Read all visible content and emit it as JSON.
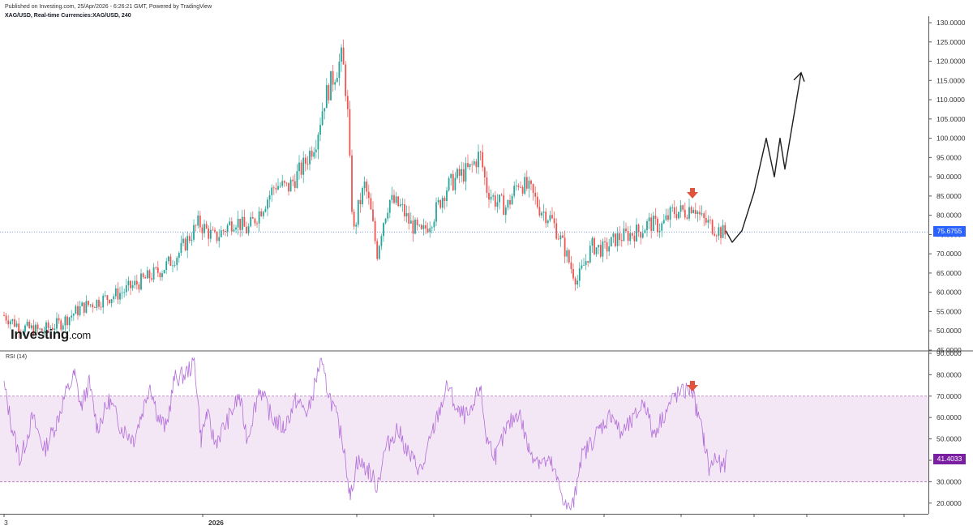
{
  "header": {
    "published": "Published on Investing.com, 25/Apr/2026 - 6:26:21 GMT, Powered by TradingView",
    "symbol": "XAG/USD, Real-time Currencies:XAG/USD, 240"
  },
  "logo": {
    "brand": "Investing",
    "suffix": ".com"
  },
  "rsi_panel": {
    "label": "RSI (14)"
  },
  "colors": {
    "up": "#26a69a",
    "down": "#ef5350",
    "rsi_line": "#b36ed9",
    "rsi_band": "#f3e6f5",
    "price_line": "#2962ff",
    "arrow": "#e0533d"
  },
  "chart_data": [
    {
      "type": "candlestick",
      "ylim": [
        45,
        130
      ],
      "y_ticks": [
        "130.0000",
        "125.0000",
        "120.0000",
        "115.0000",
        "110.0000",
        "105.0000",
        "100.0000",
        "95.0000",
        "90.0000",
        "85.0000",
        "80.0000",
        "75.0000",
        "70.0000",
        "65.0000",
        "60.0000",
        "55.0000",
        "50.0000",
        "45.0000"
      ],
      "x_tick_labels": [
        "3",
        "2026"
      ],
      "current_price": "75.6755",
      "trend_path": [
        [
          5,
          54
        ],
        [
          25,
          51
        ],
        [
          50,
          50
        ],
        [
          75,
          52
        ],
        [
          100,
          56
        ],
        [
          125,
          58
        ],
        [
          150,
          60
        ],
        [
          175,
          63
        ],
        [
          200,
          66
        ],
        [
          220,
          70
        ],
        [
          245,
          78
        ],
        [
          265,
          74
        ],
        [
          290,
          79
        ],
        [
          305,
          76
        ],
        [
          320,
          81
        ],
        [
          340,
          88
        ],
        [
          355,
          87
        ],
        [
          375,
          93
        ],
        [
          390,
          100
        ],
        [
          400,
          110
        ],
        [
          415,
          118
        ],
        [
          422,
          121
        ],
        [
          428,
          110
        ],
        [
          432,
          90
        ],
        [
          436,
          75
        ],
        [
          442,
          82
        ],
        [
          450,
          88
        ],
        [
          458,
          80
        ],
        [
          465,
          70
        ],
        [
          472,
          78
        ],
        [
          480,
          84
        ],
        [
          495,
          82
        ],
        [
          505,
          78
        ],
        [
          520,
          75
        ],
        [
          535,
          80
        ],
        [
          550,
          87
        ],
        [
          565,
          90
        ],
        [
          580,
          92
        ],
        [
          592,
          96
        ],
        [
          600,
          87
        ],
        [
          610,
          84
        ],
        [
          625,
          82
        ],
        [
          640,
          89
        ],
        [
          655,
          86
        ],
        [
          665,
          82
        ],
        [
          680,
          79
        ],
        [
          695,
          72
        ],
        [
          705,
          66
        ],
        [
          712,
          63
        ],
        [
          720,
          67
        ],
        [
          730,
          72
        ],
        [
          745,
          71
        ],
        [
          760,
          74
        ],
        [
          775,
          75
        ],
        [
          790,
          76
        ],
        [
          800,
          78
        ],
        [
          815,
          77
        ],
        [
          830,
          81
        ],
        [
          845,
          81
        ],
        [
          855,
          83
        ],
        [
          865,
          79
        ],
        [
          880,
          77
        ],
        [
          895,
          75
        ]
      ],
      "projection_path": [
        [
          895,
          76
        ],
        [
          903,
          73
        ],
        [
          915,
          76
        ],
        [
          930,
          86
        ],
        [
          945,
          100
        ],
        [
          955,
          90
        ],
        [
          962,
          100
        ],
        [
          968,
          92
        ],
        [
          988,
          117
        ]
      ],
      "highlight_arrow_x": 854
    },
    {
      "type": "line",
      "name": "RSI (14)",
      "ylim": [
        15,
        90
      ],
      "y_ticks": [
        "90.0000",
        "80.0000",
        "70.0000",
        "60.0000",
        "50.0000",
        "40.0000",
        "30.0000",
        "20.0000"
      ],
      "bands": [
        30,
        70
      ],
      "current_value": "41.4033",
      "values_path": [
        [
          5,
          75
        ],
        [
          15,
          55
        ],
        [
          25,
          40
        ],
        [
          40,
          60
        ],
        [
          55,
          45
        ],
        [
          70,
          58
        ],
        [
          80,
          70
        ],
        [
          92,
          80
        ],
        [
          100,
          65
        ],
        [
          110,
          76
        ],
        [
          120,
          55
        ],
        [
          135,
          68
        ],
        [
          150,
          55
        ],
        [
          165,
          50
        ],
        [
          175,
          62
        ],
        [
          185,
          76
        ],
        [
          195,
          60
        ],
        [
          205,
          55
        ],
        [
          215,
          78
        ],
        [
          228,
          80
        ],
        [
          240,
          86
        ],
        [
          248,
          50
        ],
        [
          255,
          62
        ],
        [
          265,
          48
        ],
        [
          280,
          58
        ],
        [
          295,
          70
        ],
        [
          305,
          50
        ],
        [
          320,
          74
        ],
        [
          335,
          60
        ],
        [
          350,
          55
        ],
        [
          365,
          68
        ],
        [
          380,
          62
        ],
        [
          395,
          86
        ],
        [
          405,
          72
        ],
        [
          415,
          60
        ],
        [
          425,
          45
        ],
        [
          432,
          22
        ],
        [
          440,
          40
        ],
        [
          455,
          35
        ],
        [
          465,
          28
        ],
        [
          475,
          45
        ],
        [
          490,
          55
        ],
        [
          505,
          42
        ],
        [
          520,
          35
        ],
        [
          535,
          55
        ],
        [
          552,
          75
        ],
        [
          565,
          62
        ],
        [
          580,
          60
        ],
        [
          592,
          75
        ],
        [
          600,
          50
        ],
        [
          612,
          42
        ],
        [
          625,
          55
        ],
        [
          640,
          63
        ],
        [
          652,
          45
        ],
        [
          665,
          40
        ],
        [
          680,
          38
        ],
        [
          695,
          22
        ],
        [
          700,
          17
        ],
        [
          708,
          20
        ],
        [
          715,
          40
        ],
        [
          725,
          46
        ],
        [
          740,
          55
        ],
        [
          755,
          62
        ],
        [
          765,
          52
        ],
        [
          780,
          58
        ],
        [
          795,
          68
        ],
        [
          805,
          52
        ],
        [
          820,
          62
        ],
        [
          832,
          70
        ],
        [
          845,
          72
        ],
        [
          853,
          74
        ],
        [
          860,
          62
        ],
        [
          868,
          50
        ],
        [
          875,
          35
        ],
        [
          882,
          42
        ],
        [
          890,
          36
        ],
        [
          897,
          41
        ]
      ],
      "highlight_arrow_x": 854
    }
  ]
}
